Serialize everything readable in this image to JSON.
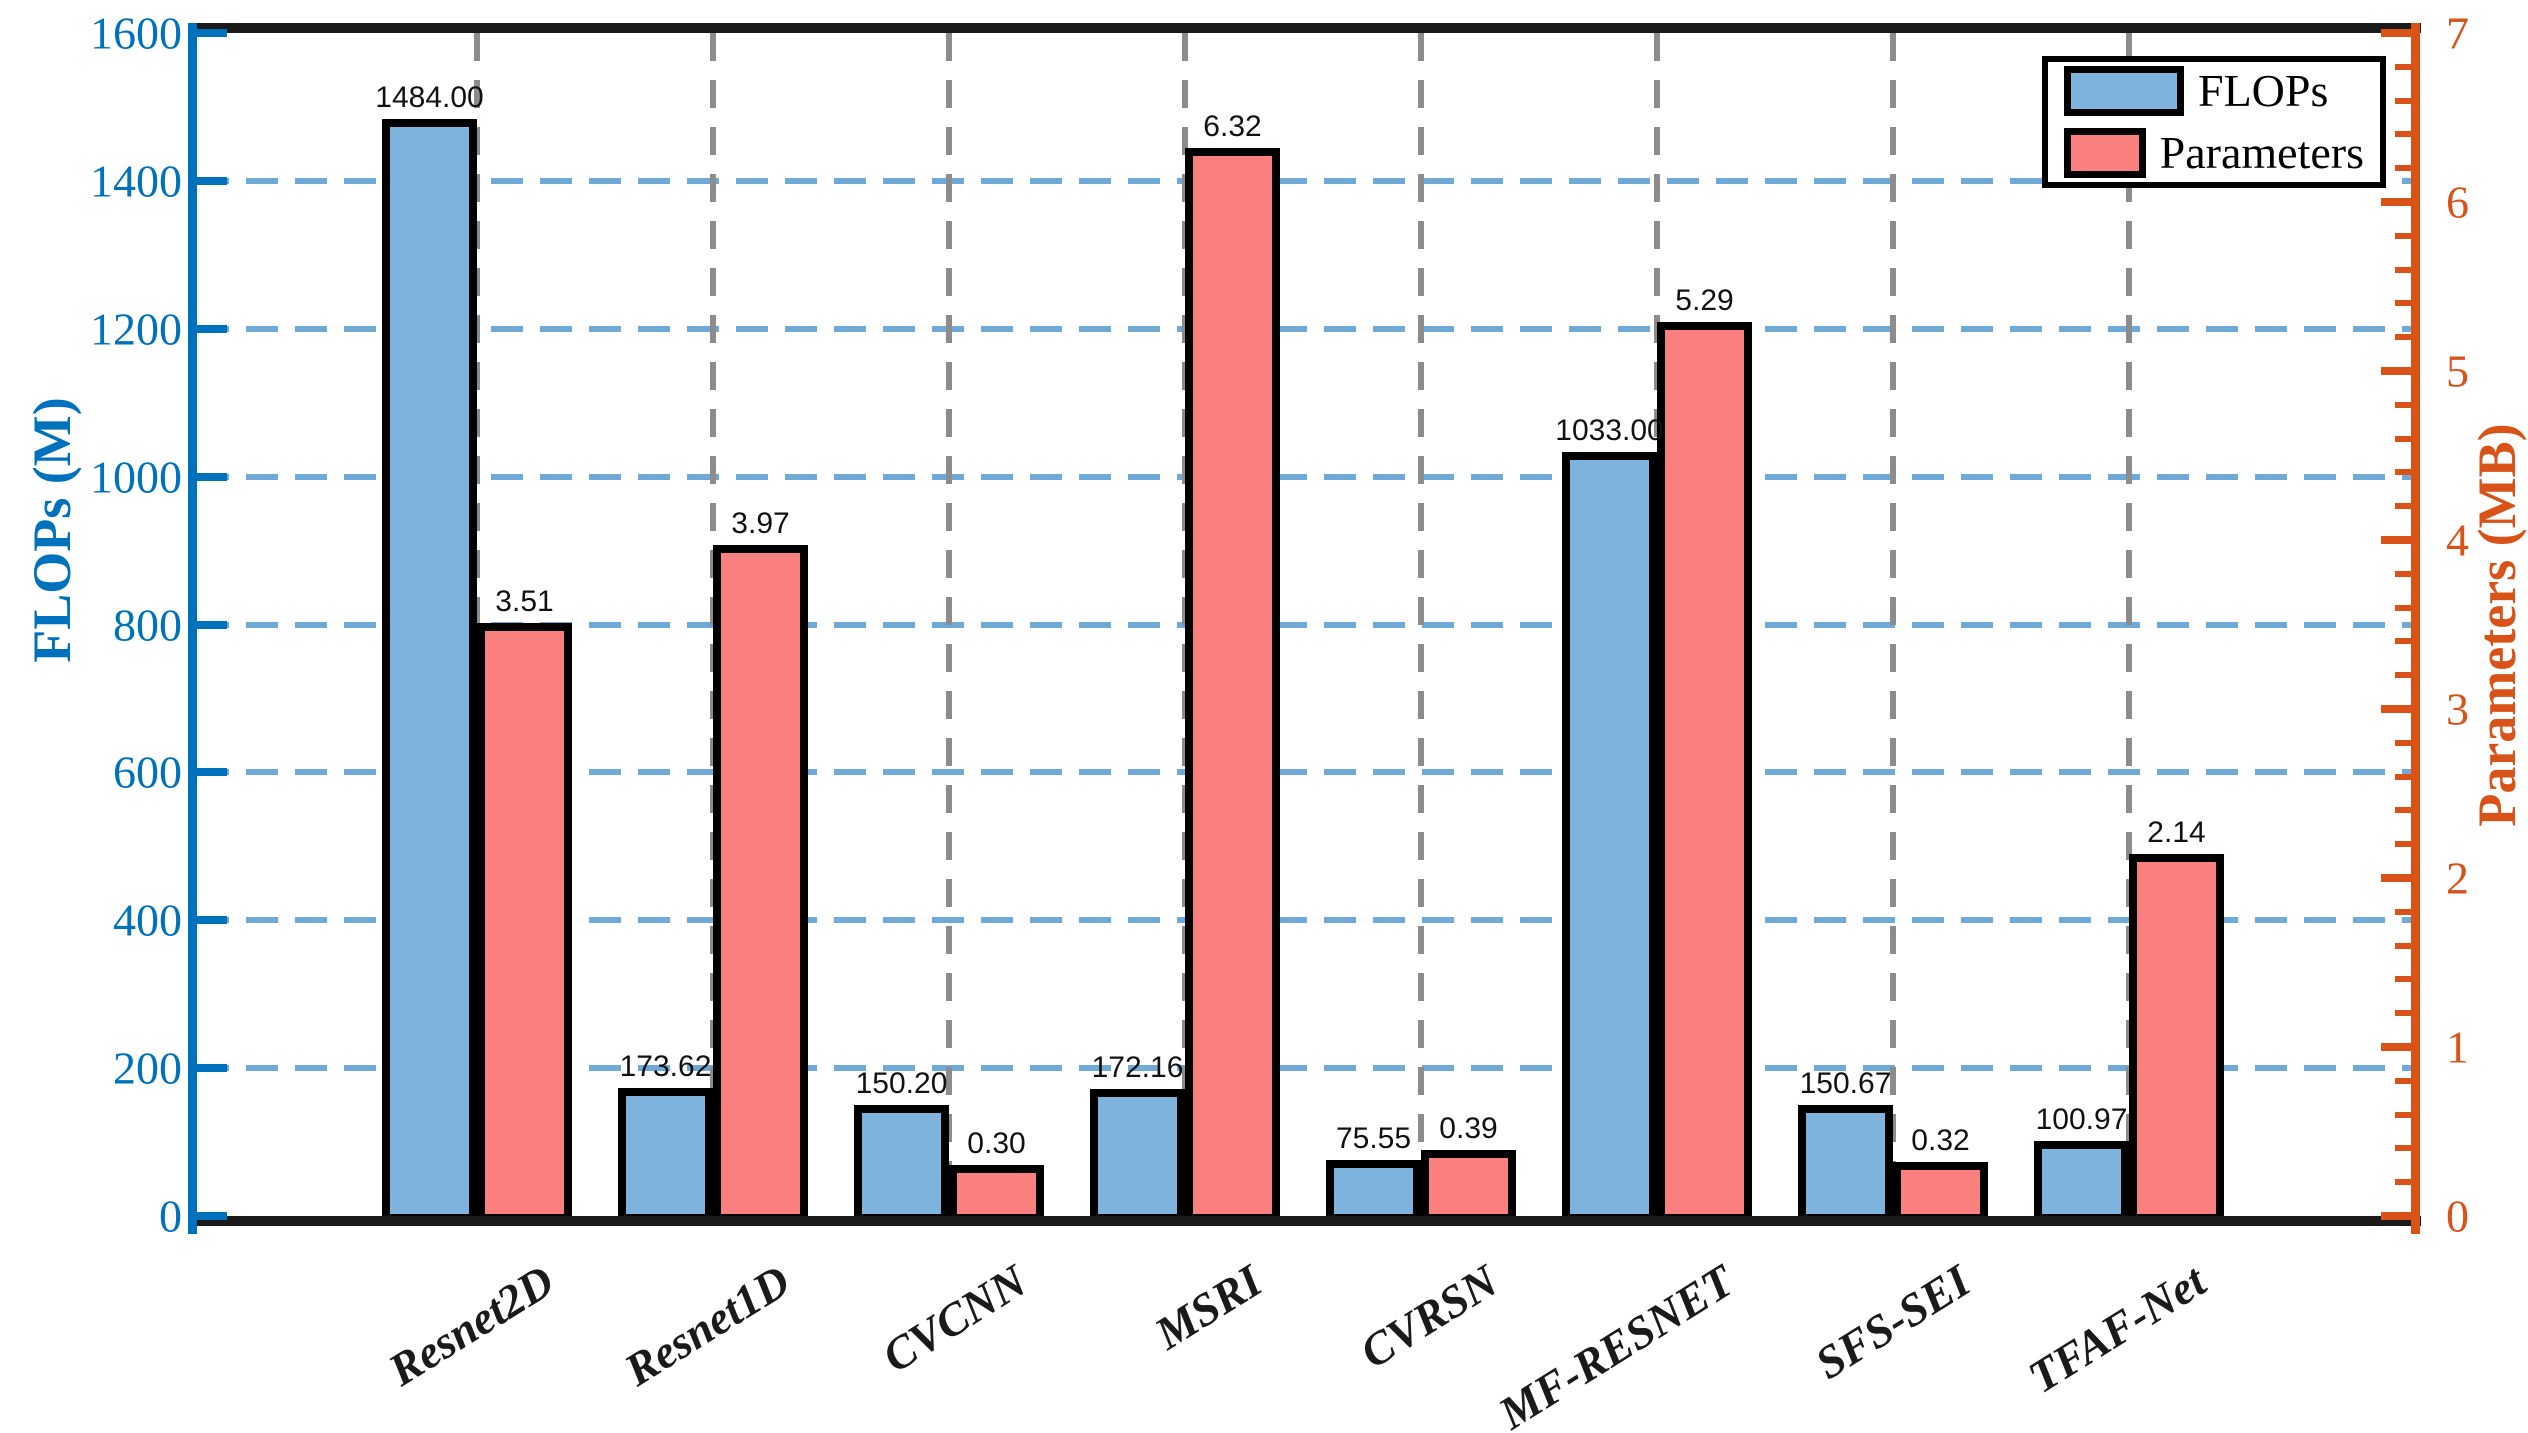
{
  "chart_data": {
    "type": "bar",
    "title": "",
    "categories": [
      "Resnet2D",
      "Resnet1D",
      "CVCNN",
      "MSRI",
      "CVRSN",
      "MF-RESNET",
      "SFS-SEI",
      "TFAF-Net"
    ],
    "series": [
      {
        "name": "FLOPs",
        "axis": "left",
        "color": "#7EB3DD",
        "values": [
          1484.0,
          173.62,
          150.2,
          172.16,
          75.55,
          1033.0,
          150.67,
          100.97
        ],
        "value_labels": [
          "1484.00",
          "173.62",
          "150.20",
          "172.16",
          "75.55",
          "1033.00",
          "150.67",
          "100.97"
        ]
      },
      {
        "name": "Parameters",
        "axis": "right",
        "color": "#FA8080",
        "values": [
          3.51,
          3.97,
          0.3,
          6.32,
          0.39,
          5.29,
          0.32,
          2.14
        ],
        "value_labels": [
          "3.51",
          "3.97",
          "0.30",
          "6.32",
          "0.39",
          "5.29",
          "0.32",
          "2.14"
        ]
      }
    ],
    "left_axis": {
      "label": "FLOPs (M)",
      "color": "#0072BD",
      "min": 0,
      "max": 1600,
      "tick_step": 200,
      "tick_labels": [
        "0",
        "200",
        "400",
        "600",
        "800",
        "1000",
        "1200",
        "1400",
        "1600"
      ]
    },
    "right_axis": {
      "label": "Parameters (MB)",
      "color": "#D95319",
      "min": 0,
      "max": 7,
      "tick_step": 1,
      "minor_tick_step": 0.2,
      "tick_labels": [
        "0",
        "1",
        "2",
        "3",
        "4",
        "5",
        "6",
        "7"
      ]
    },
    "grid": {
      "horizontal": true,
      "vertical": true,
      "style": "dashed",
      "h_color": "#6FA9D8",
      "v_color": "#8C8C8C"
    },
    "legend": {
      "position": "top-right",
      "entries": [
        {
          "label": "FLOPs",
          "color": "#7EB3DD"
        },
        {
          "label": "Parameters",
          "color": "#FA8080"
        }
      ]
    },
    "bar_border_color": "#000000",
    "spine_color": "#1a1a1a"
  }
}
